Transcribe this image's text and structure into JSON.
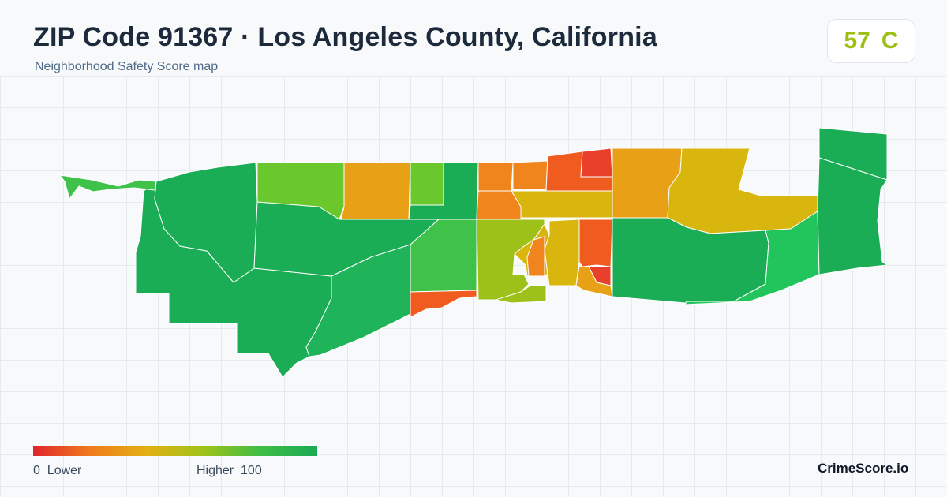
{
  "header": {
    "title": "ZIP Code 91367 · Los Angeles County, California",
    "subtitle": "Neighborhood Safety Score map"
  },
  "score": {
    "value": "57",
    "grade": "C",
    "color": "#9cc012"
  },
  "map": {
    "type": "choropleth",
    "metric": "Neighborhood Safety Score",
    "scale_min": 0,
    "scale_max": 100,
    "gridlines": true
  },
  "legend": {
    "min_value": "0",
    "min_label": "Lower",
    "max_label": "Higher",
    "max_value": "100",
    "gradient_colors": [
      "#e0242b",
      "#f07b1e",
      "#e2b012",
      "#9ec21a",
      "#3fbd45",
      "#1aaa55"
    ]
  },
  "colors": {
    "high": "#1bad55",
    "high_alt": "#1fb35a",
    "light_green": "#40c24a",
    "lime": "#6ac82d",
    "yellow_green": "#9ec11a",
    "yellow": "#d8b60e",
    "amber": "#e8a116",
    "orange": "#f0841d",
    "red_orange": "#f05c20",
    "red": "#e8402a",
    "emerald": "#22c45c"
  },
  "brand": {
    "name": "CrimeScore.io"
  }
}
